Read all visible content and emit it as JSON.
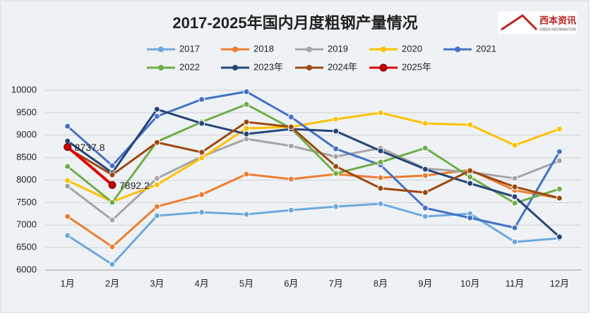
{
  "chart_data": {
    "type": "line",
    "title": "2017-2025年国内月度粗钢产量情况",
    "logo": {
      "name": "西本资讯",
      "subtitle": "XIBEN INFORMATION"
    },
    "categories": [
      "1月",
      "2月",
      "3月",
      "4月",
      "5月",
      "6月",
      "7月",
      "8月",
      "9月",
      "10月",
      "11月",
      "12月"
    ],
    "series": [
      {
        "name": "2017",
        "color": "#6fa8dc",
        "values": [
          6769,
          6125,
          7208,
          7286,
          7239,
          7333,
          7412,
          7475,
          7192,
          7255,
          6627,
          6706
        ]
      },
      {
        "name": "2018",
        "color": "#ed7d31",
        "values": [
          7192,
          6518,
          7412,
          7678,
          8133,
          8024,
          8133,
          8055,
          8102,
          8227,
          7773,
          7600
        ]
      },
      {
        "name": "2019",
        "color": "#a5a5a5",
        "values": [
          7867,
          7114,
          8039,
          8525,
          8918,
          8761,
          8525,
          8714,
          8259,
          8180,
          8039,
          8431
        ]
      },
      {
        "name": "2020",
        "color": "#ffc000",
        "values": [
          7992,
          7522,
          7898,
          8494,
          9153,
          9184,
          9357,
          9498,
          9263,
          9231,
          8776,
          9137
        ]
      },
      {
        "name": "2021",
        "color": "#4472c4",
        "values": [
          9200,
          8322,
          9420,
          9796,
          9969,
          9404,
          8698,
          8337,
          7380,
          7161,
          6941,
          8635
        ]
      },
      {
        "name": "2022",
        "color": "#70ad47",
        "values": [
          8306,
          7506,
          8855,
          9294,
          9686,
          9153,
          8149,
          8400,
          8714,
          8071,
          7490,
          7804
        ]
      },
      {
        "name": "2023年",
        "color": "#264478",
        "values": [
          8871,
          8165,
          9576,
          9263,
          9027,
          9137,
          9090,
          8651,
          8243,
          7929,
          7631,
          6737
        ]
      },
      {
        "name": "2024年",
        "color": "#9e480e",
        "values": [
          8714,
          8118,
          8839,
          8620,
          9294,
          9184,
          8306,
          7820,
          7725,
          8212,
          7851,
          7600
        ]
      },
      {
        "name": "2025年",
        "color": "#e00000",
        "values": [
          8737.8,
          7892.2,
          null,
          null,
          null,
          null,
          null,
          null,
          null,
          null,
          null,
          null
        ],
        "value_labels": [
          "8737.8",
          "7892.2",
          null,
          null,
          null,
          null,
          null,
          null,
          null,
          null,
          null,
          null
        ]
      }
    ],
    "ylim": [
      6000,
      10000
    ],
    "yticks": [
      6000,
      6500,
      7000,
      7500,
      8000,
      8500,
      9000,
      9500,
      10000
    ],
    "grid": true
  }
}
